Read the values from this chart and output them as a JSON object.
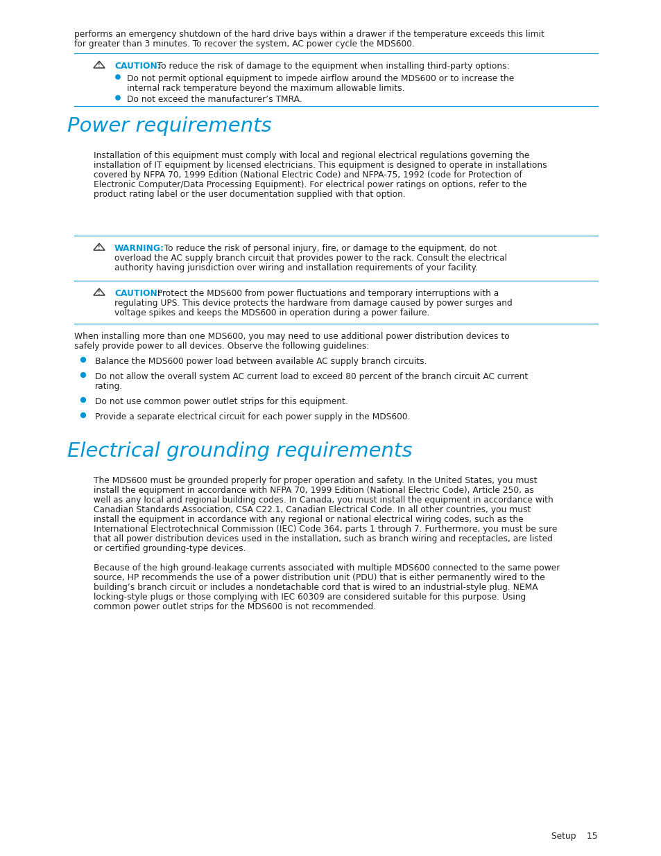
{
  "bg_color": "#ffffff",
  "text_color": "#231f20",
  "blue_color": "#0096d6",
  "line_color": "#0096d6",
  "heading1": "Power requirements",
  "heading2": "Electrical grounding requirements",
  "footer_text": "Setup    15",
  "intro_line1": "performs an emergency shutdown of the hard drive bays within a drawer if the temperature exceeds this limit",
  "intro_line2": "for greater than 3 minutes. To recover the system, AC power cycle the MDS600.",
  "caution1_label": "CAUTION:",
  "caution1_body": "  To reduce the risk of damage to the equipment when installing third-party options:",
  "caution1_b1_line1": "Do not permit optional equipment to impede airflow around the MDS600 or to increase the",
  "caution1_b1_line2": "internal rack temperature beyond the maximum allowable limits.",
  "caution1_b2": "Do not exceed the manufacturer’s TMRA.",
  "power_para_lines": [
    "Installation of this equipment must comply with local and regional electrical regulations governing the",
    "installation of IT equipment by licensed electricians. This equipment is designed to operate in installations",
    "covered by NFPA 70, 1999 Edition (National Electric Code) and NFPA-75, 1992 (code for Protection of",
    "Electronic Computer/Data Processing Equipment). For electrical power ratings on options, refer to the",
    "product rating label or the user documentation supplied with that option."
  ],
  "warning_label": "WARNING:",
  "warning_lines": [
    "  To reduce the risk of personal injury, fire, or damage to the equipment, do not",
    "overload the AC supply branch circuit that provides power to the rack. Consult the electrical",
    "authority having jurisdiction over wiring and installation requirements of your facility."
  ],
  "caution2_label": "CAUTION:",
  "caution2_lines": [
    "  Protect the MDS600 from power fluctuations and temporary interruptions with a",
    "regulating UPS. This device protects the hardware from damage caused by power surges and",
    "voltage spikes and keeps the MDS600 in operation during a power failure."
  ],
  "power_para2_lines": [
    "When installing more than one MDS600, you may need to use additional power distribution devices to",
    "safely provide power to all devices. Observe the following guidelines:"
  ],
  "power_b1": "Balance the MDS600 power load between available AC supply branch circuits.",
  "power_b2_line1": "Do not allow the overall system AC current load to exceed 80 percent of the branch circuit AC current",
  "power_b2_line2": "rating.",
  "power_b3": "Do not use common power outlet strips for this equipment.",
  "power_b4": "Provide a separate electrical circuit for each power supply in the MDS600.",
  "grounding_para1_lines": [
    "The MDS600 must be grounded properly for proper operation and safety. In the United States, you must",
    "install the equipment in accordance with NFPA 70, 1999 Edition (National Electric Code), Article 250, as",
    "well as any local and regional building codes. In Canada, you must install the equipment in accordance with",
    "Canadian Standards Association, CSA C22.1, Canadian Electrical Code. In all other countries, you must",
    "install the equipment in accordance with any regional or national electrical wiring codes, such as the",
    "International Electrotechnical Commission (IEC) Code 364, parts 1 through 7. Furthermore, you must be sure",
    "that all power distribution devices used in the installation, such as branch wiring and receptacles, are listed",
    "or certified grounding-type devices."
  ],
  "grounding_para2_lines": [
    "Because of the high ground-leakage currents associated with multiple MDS600 connected to the same power",
    "source, HP recommends the use of a power distribution unit (PDU) that is either permanently wired to the",
    "building’s branch circuit or includes a nondetachable cord that is wired to an industrial-style plug. NEMA",
    "locking-style plugs or those complying with IEC 60309 are considered suitable for this purpose. Using",
    "common power outlet strips for the MDS600 is not recommended."
  ]
}
